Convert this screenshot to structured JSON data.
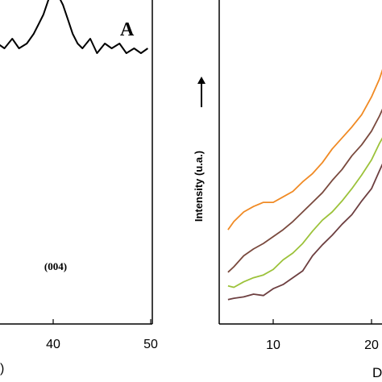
{
  "chart_data": [
    {
      "type": "line",
      "panel_label": "A",
      "xlabel": ")",
      "ylabel": "",
      "xlim": [
        26.8,
        50
      ],
      "x_ticks": [
        40,
        50
      ],
      "x_tick_labels": [
        "40",
        "50"
      ],
      "annotations": [
        {
          "text": "(004)",
          "x": 40.2,
          "y": 0.69
        }
      ],
      "series": [
        {
          "color": "#000000",
          "x": [
            26.8,
            27.5,
            28.3,
            29.0,
            29.8,
            30.5,
            31.3,
            32.0,
            32.8,
            33.5,
            34.3,
            35.0,
            35.8,
            36.5,
            37.3,
            38.0,
            38.5,
            39.0,
            39.5,
            40.0,
            40.5,
            41.0,
            41.5,
            42.0,
            42.5,
            43.0,
            43.8,
            44.5,
            45.3,
            46.0,
            46.8,
            47.5,
            48.3,
            49.0,
            49.7
          ],
          "y": [
            0.58,
            0.57,
            0.59,
            0.57,
            0.58,
            0.56,
            0.58,
            0.57,
            0.59,
            0.56,
            0.58,
            0.57,
            0.59,
            0.57,
            0.58,
            0.6,
            0.62,
            0.64,
            0.67,
            0.69,
            0.68,
            0.66,
            0.63,
            0.6,
            0.58,
            0.57,
            0.59,
            0.56,
            0.58,
            0.57,
            0.58,
            0.56,
            0.57,
            0.56,
            0.57
          ]
        }
      ]
    },
    {
      "type": "line",
      "ylabel": "Intensity (u.a.)",
      "xlabel": "D",
      "xlim": [
        5.4,
        22.0
      ],
      "x_ticks": [
        10,
        20
      ],
      "x_tick_labels": [
        "10",
        "20"
      ],
      "series": [
        {
          "color": "#f08a24",
          "x": [
            5.4,
            6.0,
            7.0,
            8.0,
            9.0,
            10.0,
            11.0,
            12.0,
            13.0,
            14.0,
            15.0,
            16.0,
            17.0,
            18.0,
            19.0,
            20.0,
            20.8,
            21.5,
            22.0
          ],
          "y": [
            0.07,
            0.13,
            0.2,
            0.24,
            0.27,
            0.27,
            0.31,
            0.35,
            0.42,
            0.48,
            0.56,
            0.66,
            0.74,
            0.82,
            0.91,
            1.04,
            1.17,
            1.32,
            1.44
          ]
        },
        {
          "color": "#7a4a3e",
          "x": [
            5.4,
            6.0,
            7.0,
            8.0,
            9.0,
            10.0,
            11.0,
            12.0,
            13.0,
            14.0,
            15.0,
            16.0,
            17.0,
            18.0,
            19.0,
            20.0,
            20.8,
            21.5,
            22.0
          ],
          "y": [
            -0.24,
            -0.2,
            -0.12,
            -0.07,
            -0.03,
            0.02,
            0.07,
            0.13,
            0.2,
            0.27,
            0.34,
            0.43,
            0.51,
            0.61,
            0.69,
            0.79,
            0.9,
            1.01,
            1.11
          ]
        },
        {
          "color": "#9cc23a",
          "x": [
            5.4,
            6.0,
            7.0,
            8.0,
            9.0,
            10.0,
            11.0,
            12.0,
            13.0,
            14.0,
            15.0,
            16.0,
            17.0,
            18.0,
            19.0,
            20.0,
            20.8,
            21.5,
            22.0
          ],
          "y": [
            -0.34,
            -0.35,
            -0.31,
            -0.28,
            -0.26,
            -0.22,
            -0.15,
            -0.1,
            -0.03,
            0.06,
            0.14,
            0.2,
            0.28,
            0.37,
            0.47,
            0.58,
            0.7,
            0.79,
            0.9
          ]
        },
        {
          "color": "#6d3f40",
          "x": [
            5.4,
            6.0,
            7.0,
            8.0,
            9.0,
            10.0,
            11.0,
            12.0,
            13.0,
            14.0,
            15.0,
            16.0,
            17.0,
            18.0,
            19.0,
            20.0,
            20.8,
            21.5,
            22.0
          ],
          "y": [
            -0.44,
            -0.43,
            -0.42,
            -0.4,
            -0.41,
            -0.36,
            -0.33,
            -0.28,
            -0.23,
            -0.12,
            -0.04,
            0.03,
            0.11,
            0.18,
            0.28,
            0.37,
            0.5,
            0.61,
            0.73
          ]
        }
      ]
    }
  ]
}
